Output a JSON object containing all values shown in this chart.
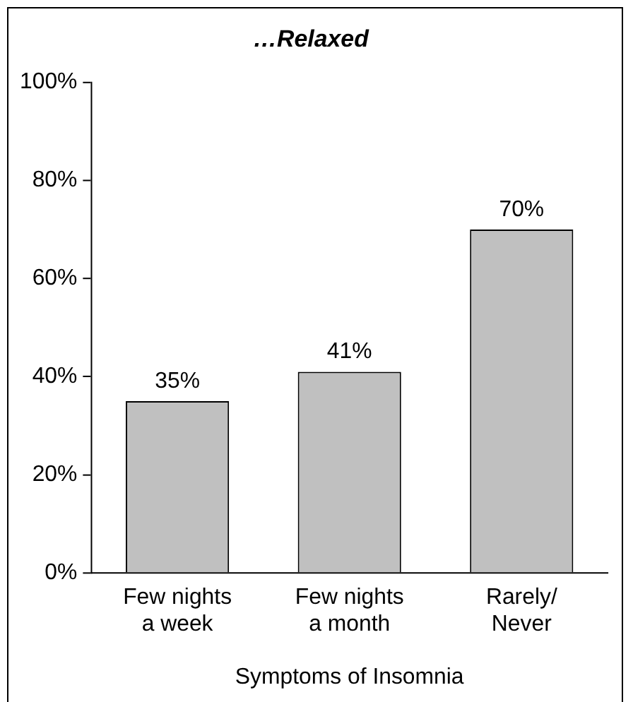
{
  "chart_data": {
    "type": "bar",
    "title": "…Relaxed",
    "xlabel": "Symptoms of Insomnia",
    "categories": [
      "Few nights a week",
      "Few nights a month",
      "Rarely/Never"
    ],
    "values": [
      35,
      41,
      70
    ],
    "value_labels": [
      "35%",
      "41%",
      "70%"
    ],
    "color": "#c0c0c0",
    "ylim": [
      0,
      100
    ],
    "yticks": [
      {
        "value": 0,
        "label": "0%"
      },
      {
        "value": 20,
        "label": "20%"
      },
      {
        "value": 40,
        "label": "40%"
      },
      {
        "value": 60,
        "label": "60%"
      },
      {
        "value": 80,
        "label": "80%"
      },
      {
        "value": 100,
        "label": "100%"
      }
    ],
    "grid": false,
    "legend": false
  }
}
